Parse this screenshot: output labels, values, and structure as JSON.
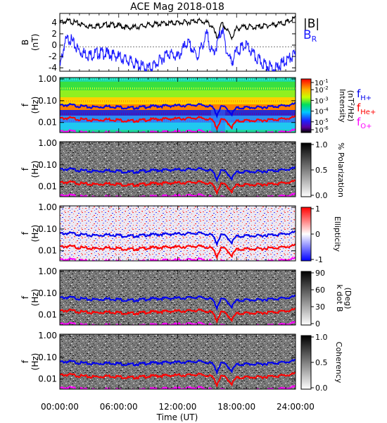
{
  "figure": {
    "title": "ACE Mag 2018-018",
    "xlabel": "Time (UT)",
    "time_ticks": [
      "00:00:00",
      "06:00:00",
      "12:00:00",
      "18:00:00",
      "24:00:00"
    ]
  },
  "colors": {
    "B_total": "#000000",
    "B_R": "#1a1aff",
    "f_H": "#0000ee",
    "f_He": "#ff0000",
    "f_O": "#ff00ff"
  },
  "chart_data": [
    {
      "type": "line",
      "panel": "B",
      "ylabel": "B",
      "yunit": "(nT)",
      "ylim": [
        -4.6,
        5.6
      ],
      "yticks": [
        "4",
        "2",
        "0",
        "-2",
        "-4"
      ],
      "x_unit": "hours UT",
      "series": [
        {
          "name": "|B|",
          "x": [
            0,
            1,
            2,
            3,
            4,
            5,
            6,
            7,
            8,
            9,
            10,
            11,
            12,
            13,
            14,
            15,
            15.5,
            16,
            16.5,
            17,
            17.5,
            18,
            19,
            20,
            21,
            22,
            23,
            24
          ],
          "values": [
            4.3,
            4.5,
            4.0,
            3.6,
            3.7,
            3.9,
            3.7,
            3.3,
            3.5,
            3.8,
            4.0,
            4.1,
            4.2,
            4.3,
            4.6,
            4.2,
            3.6,
            1.5,
            4.0,
            3.0,
            1.6,
            3.2,
            3.5,
            3.4,
            3.7,
            3.9,
            4.2,
            5.0
          ]
        },
        {
          "name": "B",
          "subscript": "R",
          "x": [
            0,
            0.5,
            1,
            1.5,
            2,
            3,
            4,
            5,
            6,
            7,
            8,
            9,
            10,
            11,
            12,
            13,
            14,
            15,
            15.5,
            16,
            16.5,
            17,
            17.5,
            18,
            19,
            20,
            21,
            22,
            23,
            24
          ],
          "values": [
            -3.5,
            1.0,
            1.8,
            0.5,
            -0.5,
            -1.2,
            -0.8,
            -1.0,
            -1.5,
            -2.2,
            -3.0,
            -3.6,
            -2.5,
            -0.8,
            -1.6,
            1.0,
            -1.5,
            2.5,
            -1.0,
            0.5,
            3.5,
            -0.5,
            -2.5,
            -0.5,
            0.5,
            -1.8,
            -3.0,
            -3.6,
            -2.2,
            -1.2
          ]
        }
      ]
    },
    {
      "type": "heatmap",
      "panel": "Intensity",
      "ylabel": "f",
      "yunit": "(Hz)",
      "yscale": "log",
      "ylim": [
        0.004,
        1.0
      ],
      "yticks": [
        "1.00",
        "0.10",
        "0.01"
      ],
      "colorbar": {
        "title": "Intensity",
        "unit_base": "(nT",
        "unit_exp": "2",
        "unit_tail": "/Hz)",
        "scale": "log",
        "range": [
          1e-06,
          0.1
        ],
        "ticks": [
          {
            "base": "10",
            "exp": "-1"
          },
          {
            "base": "10",
            "exp": "-2"
          },
          {
            "base": "10",
            "exp": "-3"
          },
          {
            "base": "10",
            "exp": "-4"
          },
          {
            "base": "10",
            "exp": "-5"
          },
          {
            "base": "10",
            "exp": "-6"
          }
        ]
      },
      "legend": [
        {
          "base": "f",
          "sub": "H+"
        },
        {
          "base": "f",
          "sub": "He+"
        },
        {
          "base": "f",
          "sub": "O+"
        }
      ]
    },
    {
      "type": "heatmap",
      "panel": "Polarization",
      "ylabel": "f",
      "yunit": "(Hz)",
      "yscale": "log",
      "ylim": [
        0.004,
        1.0
      ],
      "yticks": [
        "1.00",
        "0.10",
        "0.01"
      ],
      "colorbar": {
        "title": "% Polarization",
        "range": [
          0,
          1
        ],
        "ticks": [
          "1.0",
          "0.5",
          "0.0"
        ]
      }
    },
    {
      "type": "heatmap",
      "panel": "Ellipticity",
      "ylabel": "f",
      "yunit": "(Hz)",
      "yscale": "log",
      "ylim": [
        0.004,
        1.0
      ],
      "yticks": [
        "1.00",
        "0.10",
        "0.01"
      ],
      "colorbar": {
        "title": "Ellipticity",
        "range": [
          -1,
          1
        ],
        "ticks": [
          "1",
          "0",
          "-1"
        ]
      }
    },
    {
      "type": "heatmap",
      "panel": "k dot B",
      "ylabel": "f",
      "yunit": "(Hz)",
      "yscale": "log",
      "ylim": [
        0.004,
        1.0
      ],
      "yticks": [
        "1.00",
        "0.10",
        "0.01"
      ],
      "colorbar": {
        "title": "k dot B",
        "unit": "(Deg)",
        "range": [
          0,
          90
        ],
        "ticks": [
          "90",
          "60",
          "30",
          "0"
        ]
      }
    },
    {
      "type": "heatmap",
      "panel": "Coherency",
      "ylabel": "f",
      "yunit": "(Hz)",
      "yscale": "log",
      "ylim": [
        0.004,
        1.0
      ],
      "yticks": [
        "1.00",
        "0.10",
        "0.01"
      ],
      "colorbar": {
        "title": "Coherency",
        "range": [
          0,
          1
        ],
        "ticks": [
          "1.0",
          "0.5",
          "0.0"
        ]
      }
    }
  ],
  "gyrofrequency_lines": {
    "x_unit": "hours UT",
    "x": [
      0,
      1,
      2,
      3,
      4,
      5,
      6,
      7,
      8,
      9,
      10,
      11,
      12,
      13,
      14,
      15,
      15.5,
      16,
      16.5,
      17,
      17.5,
      18,
      19,
      20,
      21,
      22,
      23,
      24
    ],
    "f_H": [
      0.066,
      0.069,
      0.061,
      0.055,
      0.056,
      0.06,
      0.056,
      0.05,
      0.053,
      0.058,
      0.061,
      0.063,
      0.064,
      0.066,
      0.07,
      0.064,
      0.055,
      0.023,
      0.061,
      0.046,
      0.025,
      0.049,
      0.053,
      0.052,
      0.056,
      0.06,
      0.064,
      0.076
    ]
  }
}
